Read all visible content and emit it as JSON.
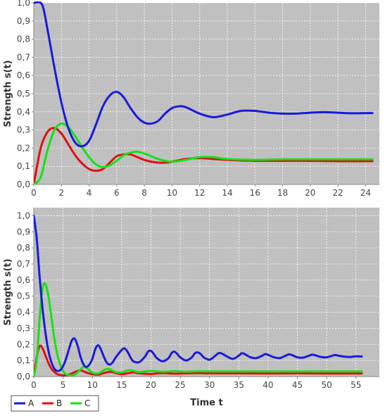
{
  "chart_data": [
    {
      "type": "line",
      "title": "",
      "xlabel": "",
      "ylabel": "Strength s(t)",
      "xlim": [
        0,
        25
      ],
      "ylim": [
        0,
        1.0
      ],
      "xticks": [
        0,
        2,
        4,
        6,
        8,
        10,
        12,
        14,
        16,
        18,
        20,
        22,
        24
      ],
      "xtick_labels": [
        "0",
        "2",
        "4",
        "6",
        "8",
        "10",
        "12",
        "14",
        "16",
        "18",
        "20",
        "22",
        "24"
      ],
      "yticks": [
        0,
        0.1,
        0.2,
        0.3,
        0.4,
        0.5,
        0.6,
        0.7,
        0.8,
        0.9,
        1.0
      ],
      "ytick_labels": [
        "0,0",
        "0,1",
        "0,2",
        "0,3",
        "0,4",
        "0,5",
        "0,6",
        "0,7",
        "0,8",
        "0,9",
        "1,0"
      ],
      "grid": true,
      "background": "#c0c0c0",
      "series": [
        {
          "name": "A",
          "color": "#1a1adc",
          "x": [
            0,
            0.6,
            1,
            1.5,
            2,
            2.5,
            3,
            3.5,
            4,
            4.5,
            5,
            5.5,
            6,
            6.5,
            7,
            7.5,
            8,
            8.5,
            9,
            9.5,
            10,
            10.5,
            11,
            12,
            13,
            14,
            15,
            16,
            17,
            18,
            19,
            20,
            21,
            22,
            23,
            24.5
          ],
          "y": [
            1.0,
            0.99,
            0.85,
            0.64,
            0.45,
            0.31,
            0.23,
            0.21,
            0.24,
            0.33,
            0.43,
            0.49,
            0.51,
            0.48,
            0.42,
            0.37,
            0.34,
            0.335,
            0.35,
            0.39,
            0.42,
            0.43,
            0.425,
            0.39,
            0.37,
            0.385,
            0.405,
            0.405,
            0.395,
            0.39,
            0.39,
            0.395,
            0.398,
            0.395,
            0.392,
            0.393
          ]
        },
        {
          "name": "B",
          "color": "#e01010",
          "x": [
            0,
            0.5,
            1,
            1.5,
            2,
            2.5,
            3,
            3.5,
            4,
            4.5,
            5,
            5.5,
            6,
            6.5,
            7,
            7.5,
            8,
            8.5,
            9,
            9.5,
            10,
            11,
            12,
            13,
            14,
            16,
            18,
            20,
            22,
            24.5
          ],
          "y": [
            0,
            0.2,
            0.29,
            0.31,
            0.28,
            0.22,
            0.16,
            0.115,
            0.085,
            0.075,
            0.085,
            0.12,
            0.155,
            0.165,
            0.165,
            0.15,
            0.135,
            0.125,
            0.12,
            0.12,
            0.125,
            0.14,
            0.145,
            0.14,
            0.135,
            0.13,
            0.13,
            0.13,
            0.128,
            0.128
          ]
        },
        {
          "name": "C",
          "color": "#18e018",
          "x": [
            0,
            0.5,
            1,
            1.5,
            2,
            2.5,
            3,
            3.5,
            4,
            4.5,
            5,
            5.5,
            6,
            6.5,
            7,
            7.5,
            8,
            8.5,
            9,
            9.5,
            10,
            11,
            12,
            13,
            14,
            16,
            18,
            20,
            22,
            24.5
          ],
          "y": [
            0,
            0.04,
            0.19,
            0.3,
            0.335,
            0.315,
            0.265,
            0.205,
            0.15,
            0.11,
            0.095,
            0.105,
            0.13,
            0.16,
            0.175,
            0.18,
            0.17,
            0.155,
            0.14,
            0.13,
            0.125,
            0.135,
            0.15,
            0.15,
            0.14,
            0.135,
            0.138,
            0.138,
            0.138,
            0.138
          ]
        }
      ]
    },
    {
      "type": "line",
      "title": "",
      "xlabel": "Time t",
      "ylabel": "Strength s(t)",
      "xlim": [
        0,
        59
      ],
      "ylim": [
        0,
        1.05
      ],
      "xticks": [
        0,
        5,
        10,
        15,
        20,
        25,
        30,
        35,
        40,
        45,
        50,
        55
      ],
      "xtick_labels": [
        "0",
        "5",
        "10",
        "15",
        "20",
        "25",
        "30",
        "35",
        "40",
        "45",
        "50",
        "55"
      ],
      "yticks": [
        0,
        0.1,
        0.2,
        0.3,
        0.4,
        0.5,
        0.6,
        0.7,
        0.8,
        0.9,
        1.0
      ],
      "ytick_labels": [
        "0,0",
        "0,1",
        "0,2",
        "0,3",
        "0,4",
        "0,5",
        "0,6",
        "0,7",
        "0,8",
        "0,9",
        "1,0"
      ],
      "grid": true,
      "background": "#c0c0c0",
      "legend": {
        "position": "bottom-left",
        "entries": [
          {
            "label": "A",
            "color": "#1a1adc"
          },
          {
            "label": "B",
            "color": "#e01010"
          },
          {
            "label": "C",
            "color": "#18e018"
          }
        ]
      },
      "series": [
        {
          "name": "A",
          "color": "#1a1adc",
          "x": [
            0,
            0.5,
            1,
            1.5,
            2,
            2.5,
            3,
            3.5,
            4,
            4.5,
            5,
            5.5,
            6,
            6.5,
            7,
            7.5,
            8,
            8.5,
            9,
            9.5,
            10,
            10.5,
            11,
            11.5,
            12,
            12.5,
            13,
            13.5,
            14,
            15,
            15.5,
            16,
            16.5,
            17,
            18,
            19,
            19.5,
            20,
            20.5,
            21,
            22,
            23,
            23.5,
            24,
            24.5,
            25,
            26,
            27,
            27.5,
            28,
            28.5,
            29,
            30,
            31,
            31.5,
            32,
            33,
            34,
            35,
            35.5,
            36,
            37,
            38,
            39,
            39.5,
            40,
            41,
            42,
            43,
            43.5,
            44,
            45,
            46,
            47,
            47.5,
            48,
            49,
            50,
            51,
            51.5,
            52,
            53,
            54,
            55,
            56
          ],
          "y": [
            1.0,
            0.86,
            0.62,
            0.42,
            0.27,
            0.16,
            0.09,
            0.05,
            0.035,
            0.04,
            0.065,
            0.11,
            0.17,
            0.225,
            0.235,
            0.19,
            0.12,
            0.075,
            0.06,
            0.075,
            0.11,
            0.17,
            0.195,
            0.165,
            0.12,
            0.085,
            0.075,
            0.09,
            0.12,
            0.165,
            0.175,
            0.155,
            0.12,
            0.095,
            0.09,
            0.125,
            0.155,
            0.16,
            0.14,
            0.115,
            0.095,
            0.115,
            0.145,
            0.155,
            0.14,
            0.12,
            0.1,
            0.12,
            0.145,
            0.15,
            0.14,
            0.12,
            0.105,
            0.13,
            0.145,
            0.145,
            0.125,
            0.11,
            0.13,
            0.145,
            0.14,
            0.12,
            0.115,
            0.13,
            0.14,
            0.135,
            0.12,
            0.115,
            0.13,
            0.138,
            0.135,
            0.12,
            0.118,
            0.13,
            0.136,
            0.133,
            0.122,
            0.12,
            0.13,
            0.134,
            0.13,
            0.124,
            0.122,
            0.126,
            0.125
          ]
        },
        {
          "name": "B",
          "color": "#e01010",
          "x": [
            0,
            0.5,
            1,
            1.5,
            2,
            2.5,
            3,
            3.5,
            4,
            4.5,
            5,
            6,
            7,
            8,
            9,
            10,
            11,
            12,
            13,
            14,
            15,
            16,
            17,
            18,
            20,
            22,
            24,
            26,
            28,
            30,
            35,
            40,
            45,
            50,
            56
          ],
          "y": [
            0,
            0.12,
            0.19,
            0.175,
            0.13,
            0.085,
            0.05,
            0.03,
            0.015,
            0.01,
            0.008,
            0.012,
            0.028,
            0.038,
            0.025,
            0.015,
            0.012,
            0.022,
            0.03,
            0.022,
            0.015,
            0.02,
            0.026,
            0.02,
            0.016,
            0.022,
            0.018,
            0.02,
            0.022,
            0.02,
            0.02,
            0.019,
            0.02,
            0.019,
            0.019
          ]
        },
        {
          "name": "C",
          "color": "#18e018",
          "x": [
            0,
            0.5,
            1,
            1.5,
            2,
            2.5,
            3,
            3.5,
            4,
            4.5,
            5,
            5.5,
            6,
            7,
            8,
            8.5,
            9,
            10,
            11,
            12,
            12.5,
            13,
            14,
            15,
            16,
            16.5,
            17,
            18,
            20,
            22,
            24,
            26,
            28,
            30,
            35,
            40,
            45,
            50,
            56
          ],
          "y": [
            0,
            0.1,
            0.36,
            0.55,
            0.575,
            0.5,
            0.37,
            0.24,
            0.14,
            0.075,
            0.035,
            0.015,
            0.008,
            0.012,
            0.045,
            0.06,
            0.055,
            0.025,
            0.02,
            0.04,
            0.048,
            0.045,
            0.028,
            0.026,
            0.038,
            0.04,
            0.036,
            0.028,
            0.035,
            0.03,
            0.034,
            0.03,
            0.033,
            0.032,
            0.032,
            0.032,
            0.032,
            0.032,
            0.032
          ]
        }
      ]
    }
  ]
}
